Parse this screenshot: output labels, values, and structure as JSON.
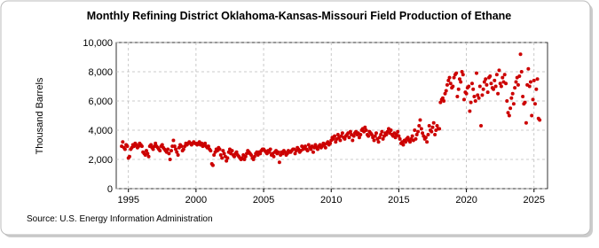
{
  "chart_data": {
    "type": "scatter",
    "title": "Monthly Refining District Oklahoma-Kansas-Missouri Field Production of Ethane",
    "ylabel": "Thousand Barrels",
    "source": "Source: U.S. Energy Information Administration",
    "color": "#cc0000",
    "grid": true,
    "xlim": [
      1994.1,
      2026
    ],
    "xticks": [
      1995,
      2000,
      2005,
      2010,
      2015,
      2020,
      2025
    ],
    "ylim": [
      0,
      10000
    ],
    "yticks": [
      0,
      {
        "value": 2000,
        "label": "2,000"
      },
      {
        "value": 4000,
        "label": "4,000"
      },
      {
        "value": 6000,
        "label": "6,000"
      },
      {
        "value": 8000,
        "label": "8,000"
      },
      {
        "value": 10000,
        "label": "10,000"
      }
    ],
    "x": [
      1994.5,
      1994.58,
      1994.67,
      1994.75,
      1994.83,
      1994.92,
      1995,
      1995.08,
      1995.17,
      1995.25,
      1995.33,
      1995.42,
      1995.5,
      1995.58,
      1995.67,
      1995.75,
      1995.83,
      1995.92,
      1996,
      1996.08,
      1996.17,
      1996.25,
      1996.33,
      1996.42,
      1996.5,
      1996.58,
      1996.67,
      1996.75,
      1996.83,
      1996.92,
      1997,
      1997.08,
      1997.17,
      1997.25,
      1997.33,
      1997.42,
      1997.5,
      1997.58,
      1997.67,
      1997.75,
      1997.83,
      1997.92,
      1998,
      1998.08,
      1998.17,
      1998.25,
      1998.33,
      1998.42,
      1998.5,
      1998.58,
      1998.67,
      1998.75,
      1998.83,
      1998.92,
      1999,
      1999.08,
      1999.17,
      1999.25,
      1999.33,
      1999.42,
      1999.5,
      1999.58,
      1999.67,
      1999.75,
      1999.83,
      1999.92,
      2000,
      2000.08,
      2000.17,
      2000.25,
      2000.33,
      2000.42,
      2000.5,
      2000.58,
      2000.67,
      2000.75,
      2000.83,
      2000.92,
      2001,
      2001.08,
      2001.17,
      2001.25,
      2001.33,
      2001.42,
      2001.5,
      2001.58,
      2001.67,
      2001.75,
      2001.83,
      2001.92,
      2002,
      2002.08,
      2002.17,
      2002.25,
      2002.33,
      2002.42,
      2002.5,
      2002.58,
      2002.67,
      2002.75,
      2002.83,
      2002.92,
      2003,
      2003.08,
      2003.17,
      2003.25,
      2003.33,
      2003.42,
      2003.5,
      2003.58,
      2003.67,
      2003.75,
      2003.83,
      2003.92,
      2004,
      2004.08,
      2004.17,
      2004.25,
      2004.33,
      2004.42,
      2004.5,
      2004.58,
      2004.67,
      2004.75,
      2004.83,
      2004.92,
      2005,
      2005.08,
      2005.17,
      2005.25,
      2005.33,
      2005.42,
      2005.5,
      2005.58,
      2005.67,
      2005.75,
      2005.83,
      2005.92,
      2006,
      2006.08,
      2006.17,
      2006.25,
      2006.33,
      2006.42,
      2006.5,
      2006.58,
      2006.67,
      2006.75,
      2006.83,
      2006.92,
      2007,
      2007.08,
      2007.17,
      2007.25,
      2007.33,
      2007.42,
      2007.5,
      2007.58,
      2007.67,
      2007.75,
      2007.83,
      2007.92,
      2008,
      2008.08,
      2008.17,
      2008.25,
      2008.33,
      2008.42,
      2008.5,
      2008.58,
      2008.67,
      2008.75,
      2008.83,
      2008.92,
      2009,
      2009.08,
      2009.17,
      2009.25,
      2009.33,
      2009.42,
      2009.5,
      2009.58,
      2009.67,
      2009.75,
      2009.83,
      2009.92,
      2010,
      2010.08,
      2010.17,
      2010.25,
      2010.33,
      2010.42,
      2010.5,
      2010.58,
      2010.67,
      2010.75,
      2010.83,
      2010.92,
      2011,
      2011.08,
      2011.17,
      2011.25,
      2011.33,
      2011.42,
      2011.5,
      2011.58,
      2011.67,
      2011.75,
      2011.83,
      2011.92,
      2012,
      2012.08,
      2012.17,
      2012.25,
      2012.33,
      2012.42,
      2012.5,
      2012.58,
      2012.67,
      2012.75,
      2012.83,
      2012.92,
      2013,
      2013.08,
      2013.17,
      2013.25,
      2013.33,
      2013.42,
      2013.5,
      2013.58,
      2013.67,
      2013.75,
      2013.83,
      2013.92,
      2014,
      2014.08,
      2014.17,
      2014.25,
      2014.33,
      2014.42,
      2014.5,
      2014.58,
      2014.67,
      2014.75,
      2014.83,
      2014.92,
      2015,
      2015.08,
      2015.17,
      2015.25,
      2015.33,
      2015.42,
      2015.5,
      2015.58,
      2015.67,
      2015.75,
      2015.83,
      2015.92,
      2016,
      2016.08,
      2016.17,
      2016.25,
      2016.33,
      2016.42,
      2016.5,
      2016.58,
      2016.67,
      2016.75,
      2016.83,
      2016.92,
      2017,
      2017.08,
      2017.17,
      2017.25,
      2017.33,
      2017.42,
      2017.5,
      2017.58,
      2017.67,
      2017.75,
      2017.83,
      2017.92,
      2018,
      2018.08,
      2018.17,
      2018.25,
      2018.33,
      2018.42,
      2018.5,
      2018.58,
      2018.67,
      2018.75,
      2018.83,
      2018.92,
      2019,
      2019.08,
      2019.17,
      2019.25,
      2019.33,
      2019.42,
      2019.5,
      2019.58,
      2019.67,
      2019.75,
      2019.83,
      2019.92,
      2020,
      2020.08,
      2020.17,
      2020.25,
      2020.33,
      2020.42,
      2020.5,
      2020.58,
      2020.67,
      2020.75,
      2020.83,
      2020.92,
      2021,
      2021.08,
      2021.17,
      2021.25,
      2021.33,
      2021.42,
      2021.5,
      2021.58,
      2021.67,
      2021.75,
      2021.83,
      2021.92,
      2022,
      2022.08,
      2022.17,
      2022.25,
      2022.33,
      2022.42,
      2022.5,
      2022.58,
      2022.67,
      2022.75,
      2022.83,
      2022.92,
      2023,
      2023.08,
      2023.17,
      2023.25,
      2023.33,
      2023.42,
      2023.5,
      2023.58,
      2023.67,
      2023.75,
      2023.83,
      2023.92,
      2024,
      2024.08,
      2024.17,
      2024.25,
      2024.33,
      2024.42,
      2024.5,
      2024.58,
      2024.67,
      2024.75,
      2024.83,
      2024.92,
      2025,
      2025.08,
      2025.17,
      2025.25,
      2025.33,
      2025.42
    ],
    "values": [
      2900,
      3200,
      2800,
      2700,
      3000,
      2900,
      2100,
      2200,
      2700,
      2800,
      3000,
      2900,
      3100,
      3000,
      2800,
      2900,
      3100,
      3000,
      2900,
      2500,
      2400,
      2300,
      2600,
      2400,
      2200,
      2900,
      3000,
      2800,
      2700,
      2900,
      3100,
      2900,
      2800,
      2700,
      2600,
      2900,
      3000,
      2800,
      2700,
      2600,
      2500,
      2700,
      2400,
      2000,
      2600,
      2900,
      3300,
      2900,
      2700,
      2500,
      2300,
      2800,
      3000,
      2900,
      2600,
      2700,
      2900,
      3100,
      3000,
      3100,
      3200,
      3100,
      3000,
      3100,
      3200,
      3100,
      3100,
      3000,
      3100,
      3200,
      3000,
      3100,
      2900,
      3000,
      3100,
      2900,
      2800,
      2900,
      2700,
      2600,
      1700,
      1600,
      2300,
      2500,
      2700,
      2600,
      2800,
      2700,
      2300,
      2100,
      2600,
      2400,
      2200,
      1900,
      2100,
      2500,
      2700,
      2400,
      2600,
      2300,
      2200,
      2400,
      2500,
      2300,
      2200,
      2100,
      2000,
      2100,
      2300,
      2000,
      2200,
      2400,
      2600,
      2500,
      2400,
      2300,
      2100,
      2000,
      2200,
      2400,
      2500,
      2300,
      2500,
      2400,
      2600,
      2700,
      2700,
      2600,
      2500,
      2400,
      2600,
      2500,
      2700,
      2300,
      2400,
      2200,
      2500,
      2600,
      2400,
      2500,
      1800,
      2300,
      2500,
      2400,
      2600,
      2500,
      2300,
      2400,
      2600,
      2500,
      2500,
      2600,
      2700,
      2700,
      2400,
      2600,
      2800,
      2700,
      2500,
      2600,
      2900,
      2700,
      2800,
      2900,
      2700,
      2600,
      3000,
      2800,
      2700,
      2900,
      2500,
      2800,
      3000,
      2800,
      2700,
      2900,
      3000,
      2800,
      2900,
      3100,
      3000,
      2800,
      3100,
      3200,
      3000,
      3100,
      3300,
      3500,
      3400,
      3600,
      3200,
      3400,
      3700,
      3500,
      3300,
      3600,
      3800,
      3500,
      3400,
      3600,
      3700,
      3800,
      3500,
      3900,
      3700,
      3300,
      3600,
      3800,
      3900,
      3700,
      3800,
      3500,
      3700,
      4000,
      4100,
      3900,
      4200,
      4000,
      3700,
      3600,
      3900,
      3800,
      3700,
      3500,
      3300,
      3600,
      3800,
      3400,
      3200,
      3500,
      3700,
      3900,
      3400,
      3600,
      3800,
      3700,
      3900,
      4100,
      3800,
      4000,
      3700,
      3600,
      3800,
      3500,
      3700,
      3900,
      3600,
      3400,
      3100,
      3200,
      3000,
      3300,
      3200,
      3400,
      3500,
      3300,
      3200,
      3400,
      3600,
      3300,
      4000,
      3400,
      3700,
      3900,
      4300,
      4700,
      4100,
      3800,
      3600,
      3400,
      3500,
      3200,
      3700,
      4300,
      4000,
      3900,
      4200,
      4500,
      3700,
      4000,
      4300,
      4100,
      4100,
      5900,
      6100,
      6200,
      6000,
      6500,
      6700,
      7100,
      7400,
      7600,
      7200,
      6900,
      7000,
      7600,
      7800,
      7900,
      6300,
      6800,
      7500,
      7300,
      8000,
      7800,
      6100,
      6600,
      6500,
      6900,
      7000,
      5300,
      5900,
      7200,
      6800,
      6300,
      6000,
      7900,
      6400,
      6200,
      7000,
      4300,
      6400,
      6800,
      7300,
      7500,
      7100,
      6600,
      7600,
      7700,
      7200,
      6900,
      6800,
      7400,
      7000,
      7800,
      6500,
      8100,
      7200,
      7000,
      7600,
      7300,
      7800,
      7200,
      6000,
      5200,
      5000,
      5500,
      6200,
      6500,
      5800,
      6900,
      7300,
      7600,
      7100,
      7700,
      9200,
      8000,
      6300,
      5800,
      5900,
      4500,
      7100,
      8200,
      7000,
      7300,
      5000,
      6100,
      7400,
      5800,
      6800,
      7500,
      4800,
      4700
    ]
  }
}
